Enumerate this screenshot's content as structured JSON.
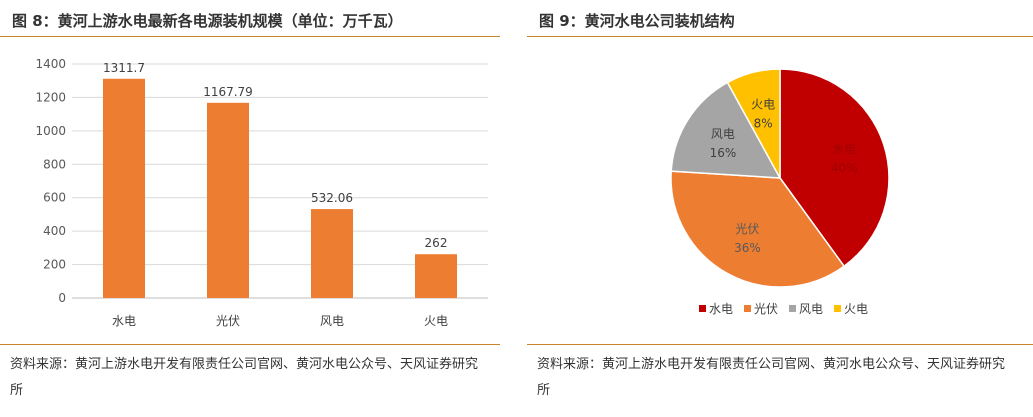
{
  "left": {
    "title": "图 8：黄河上游水电最新各电源装机规模（单位：万千瓦）",
    "source": "资料来源：黄河上游水电开发有限责任公司官网、黄河水电公众号、天风证券研究所"
  },
  "right": {
    "title": "图 9：黄河水电公司装机结构",
    "source": "资料来源：黄河上游水电开发有限责任公司官网、黄河水电公众号、天风证券研究所"
  },
  "chart_data": [
    {
      "type": "bar",
      "categories": [
        "水电",
        "光伏",
        "风电",
        "火电"
      ],
      "values": [
        1311.7,
        1167.79,
        532.06,
        262
      ],
      "value_labels": [
        "1311.7",
        "1167.79",
        "532.06",
        "262"
      ],
      "ylim": [
        0,
        1400
      ],
      "yticks": [
        "0",
        "200",
        "400",
        "600",
        "800",
        "1000",
        "1200",
        "1400"
      ],
      "grid": true,
      "bar_color": "#ed7d31"
    },
    {
      "type": "pie",
      "labels": [
        "水电",
        "光伏",
        "风电",
        "火电"
      ],
      "values": [
        40,
        36,
        16,
        8
      ],
      "value_labels": [
        "40%",
        "36%",
        "16%",
        "8%"
      ],
      "colors": [
        "#c00000",
        "#ed7d31",
        "#a5a5a5",
        "#ffc000"
      ],
      "legend": "bottom"
    }
  ]
}
